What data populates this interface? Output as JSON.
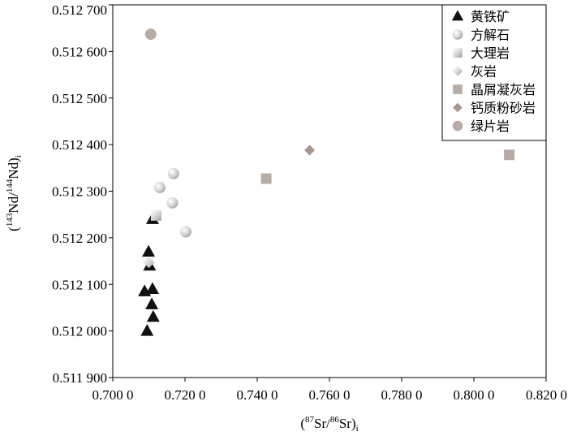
{
  "chart_data": {
    "type": "scatter",
    "xlabel": {
      "open": "(",
      "sup1": "87",
      "mid": "Sr/",
      "sup2": "86",
      "tail": "Sr)",
      "sub": "i"
    },
    "ylabel": {
      "open": "(",
      "sup1": "143",
      "mid": "Nd/",
      "sup2": "144",
      "tail": "Nd)",
      "sub": "i"
    },
    "xlim": [
      0.7,
      0.82
    ],
    "ylim": [
      0.5119,
      0.5127
    ],
    "x_ticks": [
      0.7,
      0.72,
      0.74,
      0.76,
      0.78,
      0.8,
      0.82
    ],
    "x_tick_labels": [
      "0.700 0",
      "0.720 0",
      "0.740 0",
      "0.760 0",
      "0.780 0",
      "0.800 0",
      "0.820 0"
    ],
    "y_ticks": [
      0.5119,
      0.512,
      0.5121,
      0.5122,
      0.5123,
      0.5124,
      0.5125,
      0.5126,
      0.5127
    ],
    "y_tick_labels": [
      "0.511 900",
      "0.512 000",
      "0.512 100",
      "0.512 200",
      "0.512 300",
      "0.512 400",
      "0.512 500",
      "0.512 600",
      "0.512 700"
    ],
    "grid": false,
    "legend_position": "top-right",
    "series": [
      {
        "name": "黄铁矿",
        "marker": "triangle",
        "color": "#111111",
        "points": [
          [
            0.7095,
            0.512
          ],
          [
            0.7112,
            0.51203
          ],
          [
            0.7108,
            0.512057
          ],
          [
            0.711,
            0.51209
          ],
          [
            0.7088,
            0.512085
          ],
          [
            0.7102,
            0.51214
          ],
          [
            0.7099,
            0.51217
          ],
          [
            0.711,
            0.51224
          ]
        ]
      },
      {
        "name": "方解石",
        "marker": "circle-gradient",
        "color": "#c8c8c8",
        "points": [
          [
            0.7168,
            0.512338
          ],
          [
            0.713,
            0.512308
          ],
          [
            0.7165,
            0.512275
          ],
          [
            0.7202,
            0.512213
          ]
        ]
      },
      {
        "name": "大理岩",
        "marker": "square-gradient",
        "color": "#c8c8c8",
        "points": [
          [
            0.712,
            0.512248
          ]
        ]
      },
      {
        "name": "灰岩",
        "marker": "diamond-gradient",
        "color": "#d0d0d0",
        "points": [
          [
            0.71,
            0.512147
          ]
        ]
      },
      {
        "name": "晶屑凝灰岩",
        "marker": "square",
        "color": "#b8aca6",
        "points": [
          [
            0.7425,
            0.512327
          ],
          [
            0.8098,
            0.512378
          ]
        ]
      },
      {
        "name": "钙质粉砂岩",
        "marker": "diamond",
        "color": "#a8958f",
        "points": [
          [
            0.7545,
            0.512388
          ]
        ]
      },
      {
        "name": "绿片岩",
        "marker": "circle",
        "color": "#b8aca6",
        "points": [
          [
            0.7105,
            0.512637
          ]
        ]
      }
    ]
  }
}
